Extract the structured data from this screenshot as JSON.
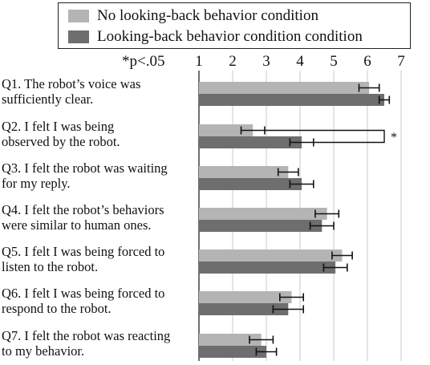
{
  "legend": {
    "items": [
      {
        "label": "No looking-back behavior condition",
        "color": "#b4b4b4"
      },
      {
        "label": "Looking-back behavior condition condition",
        "color": "#6e6e6e"
      }
    ]
  },
  "significance_note": "*p<.05",
  "significance_marker": "*",
  "chart_data": {
    "type": "bar",
    "orientation": "horizontal",
    "xlim": [
      1,
      7
    ],
    "ticks": [
      1,
      2,
      3,
      4,
      5,
      6,
      7
    ],
    "grid": true,
    "legend_position": "top",
    "categories": [
      {
        "lines": [
          "Q1. The robot’s voice was",
          "sufficiently clear."
        ]
      },
      {
        "lines": [
          "Q2. I felt I was being",
          "observed by the robot."
        ]
      },
      {
        "lines": [
          "Q3. I felt the robot was waiting",
          "for my reply."
        ]
      },
      {
        "lines": [
          "Q4. I felt the robot’s behaviors",
          "were similar to human ones."
        ]
      },
      {
        "lines": [
          "Q5. I felt I was being forced to",
          "listen to the robot."
        ]
      },
      {
        "lines": [
          "Q6. I felt I was being forced to",
          "respond to the robot."
        ]
      },
      {
        "lines": [
          "Q7. I felt the robot was reacting",
          "to my behavior."
        ]
      }
    ],
    "series": [
      {
        "name": "No looking-back behavior condition",
        "values": [
          6.05,
          2.6,
          3.65,
          4.8,
          5.25,
          3.75,
          2.85
        ],
        "errors": [
          0.3,
          0.35,
          0.3,
          0.35,
          0.3,
          0.35,
          0.35
        ]
      },
      {
        "name": "Looking-back behavior condition condition",
        "values": [
          6.5,
          4.05,
          4.05,
          4.65,
          5.05,
          3.65,
          3.0
        ],
        "errors": [
          0.15,
          0.35,
          0.35,
          0.35,
          0.35,
          0.45,
          0.3
        ]
      }
    ],
    "significant_pairs": [
      2
    ]
  }
}
